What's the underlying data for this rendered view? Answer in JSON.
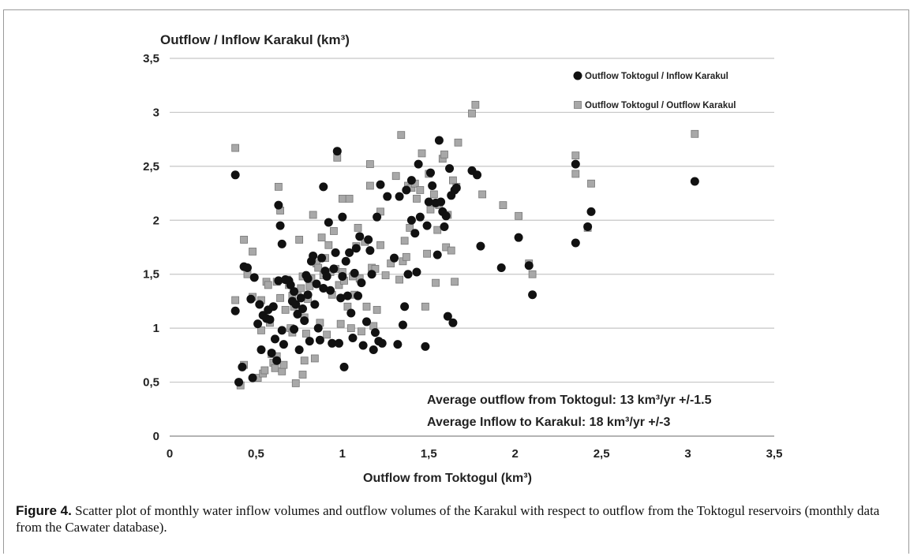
{
  "chart_data": {
    "type": "scatter",
    "title": "Outflow / Inflow Karakul (km³)",
    "xlabel": "Outflow from Toktogul (km³)",
    "xlim": [
      0,
      3.5
    ],
    "ylim": [
      0,
      3.5
    ],
    "xticks": [
      "0",
      "0,5",
      "1",
      "1,5",
      "2",
      "2,5",
      "3",
      "3,5"
    ],
    "yticks": [
      "0",
      "0,5",
      "1",
      "1,5",
      "2",
      "2,5",
      "3",
      "3,5"
    ],
    "grid": "horizontal",
    "legend_position": "top-right",
    "annotations": [
      "Average outflow from Toktogul: 13 km³/yr  +/-1.5",
      "Average Inflow to Karakul: 18 km³/yr +/-3"
    ],
    "series": [
      {
        "name": "Outflow Toktogul / Inflow Karakul",
        "marker": "circle",
        "color": "#111111",
        "points": [
          [
            0.38,
            2.42
          ],
          [
            0.38,
            1.16
          ],
          [
            0.4,
            0.5
          ],
          [
            0.42,
            0.64
          ],
          [
            0.43,
            1.57
          ],
          [
            0.45,
            1.56
          ],
          [
            0.47,
            1.27
          ],
          [
            0.48,
            0.54
          ],
          [
            0.49,
            1.47
          ],
          [
            0.51,
            1.04
          ],
          [
            0.52,
            1.22
          ],
          [
            0.53,
            0.8
          ],
          [
            0.54,
            1.12
          ],
          [
            0.56,
            1.09
          ],
          [
            0.57,
            1.17
          ],
          [
            0.58,
            1.08
          ],
          [
            0.59,
            0.77
          ],
          [
            0.6,
            1.2
          ],
          [
            0.61,
            0.9
          ],
          [
            0.62,
            0.7
          ],
          [
            0.63,
            1.44
          ],
          [
            0.63,
            2.14
          ],
          [
            0.64,
            1.95
          ],
          [
            0.65,
            1.78
          ],
          [
            0.65,
            0.98
          ],
          [
            0.66,
            0.85
          ],
          [
            0.67,
            1.45
          ],
          [
            0.69,
            1.44
          ],
          [
            0.7,
            1.4
          ],
          [
            0.71,
            1.25
          ],
          [
            0.72,
            0.99
          ],
          [
            0.72,
            1.34
          ],
          [
            0.73,
            1.22
          ],
          [
            0.74,
            1.13
          ],
          [
            0.75,
            0.8
          ],
          [
            0.76,
            1.28
          ],
          [
            0.77,
            1.18
          ],
          [
            0.78,
            1.07
          ],
          [
            0.79,
            1.49
          ],
          [
            0.8,
            1.46
          ],
          [
            0.8,
            1.31
          ],
          [
            0.81,
            0.88
          ],
          [
            0.82,
            1.62
          ],
          [
            0.83,
            1.67
          ],
          [
            0.84,
            1.22
          ],
          [
            0.85,
            1.41
          ],
          [
            0.86,
            1.0
          ],
          [
            0.87,
            0.89
          ],
          [
            0.88,
            1.65
          ],
          [
            0.89,
            1.37
          ],
          [
            0.89,
            2.31
          ],
          [
            0.9,
            1.53
          ],
          [
            0.91,
            1.48
          ],
          [
            0.92,
            1.98
          ],
          [
            0.93,
            1.35
          ],
          [
            0.94,
            0.86
          ],
          [
            0.95,
            1.55
          ],
          [
            0.96,
            1.7
          ],
          [
            0.97,
            2.64
          ],
          [
            0.98,
            0.86
          ],
          [
            0.99,
            1.28
          ],
          [
            1.0,
            1.48
          ],
          [
            1.0,
            2.03
          ],
          [
            1.01,
            0.64
          ],
          [
            1.02,
            1.62
          ],
          [
            1.03,
            1.3
          ],
          [
            1.04,
            1.7
          ],
          [
            1.05,
            1.14
          ],
          [
            1.06,
            0.91
          ],
          [
            1.07,
            1.51
          ],
          [
            1.08,
            1.74
          ],
          [
            1.09,
            1.3
          ],
          [
            1.1,
            1.85
          ],
          [
            1.11,
            1.42
          ],
          [
            1.12,
            0.84
          ],
          [
            1.14,
            1.06
          ],
          [
            1.15,
            1.82
          ],
          [
            1.16,
            1.72
          ],
          [
            1.17,
            1.5
          ],
          [
            1.18,
            0.8
          ],
          [
            1.19,
            0.96
          ],
          [
            1.2,
            2.03
          ],
          [
            1.21,
            0.88
          ],
          [
            1.22,
            2.33
          ],
          [
            1.23,
            0.86
          ],
          [
            1.26,
            2.22
          ],
          [
            1.3,
            1.65
          ],
          [
            1.32,
            0.85
          ],
          [
            1.33,
            2.22
          ],
          [
            1.35,
            1.03
          ],
          [
            1.36,
            1.2
          ],
          [
            1.37,
            2.28
          ],
          [
            1.38,
            1.5
          ],
          [
            1.4,
            2.0
          ],
          [
            1.4,
            2.37
          ],
          [
            1.42,
            1.88
          ],
          [
            1.43,
            1.52
          ],
          [
            1.44,
            2.52
          ],
          [
            1.45,
            2.03
          ],
          [
            1.48,
            0.83
          ],
          [
            1.49,
            1.95
          ],
          [
            1.5,
            2.17
          ],
          [
            1.51,
            2.44
          ],
          [
            1.52,
            2.32
          ],
          [
            1.54,
            2.16
          ],
          [
            1.55,
            1.68
          ],
          [
            1.56,
            2.74
          ],
          [
            1.57,
            2.17
          ],
          [
            1.58,
            2.08
          ],
          [
            1.59,
            1.94
          ],
          [
            1.6,
            2.04
          ],
          [
            1.61,
            1.11
          ],
          [
            1.62,
            2.48
          ],
          [
            1.63,
            2.23
          ],
          [
            1.64,
            1.05
          ],
          [
            1.65,
            2.28
          ],
          [
            1.66,
            2.3
          ],
          [
            1.75,
            2.46
          ],
          [
            1.78,
            2.42
          ],
          [
            1.8,
            1.76
          ],
          [
            1.92,
            1.56
          ],
          [
            2.02,
            1.84
          ],
          [
            2.08,
            1.58
          ],
          [
            2.1,
            1.31
          ],
          [
            2.35,
            2.52
          ],
          [
            2.35,
            1.79
          ],
          [
            2.42,
            1.94
          ],
          [
            2.44,
            2.08
          ],
          [
            3.04,
            2.36
          ]
        ]
      },
      {
        "name": "Outflow Toktogul / Outflow Karakul",
        "marker": "square",
        "color": "#a8a8a8",
        "points": [
          [
            0.38,
            2.67
          ],
          [
            0.38,
            1.26
          ],
          [
            0.41,
            0.47
          ],
          [
            0.43,
            0.66
          ],
          [
            0.43,
            1.82
          ],
          [
            0.45,
            1.5
          ],
          [
            0.48,
            1.71
          ],
          [
            0.48,
            1.29
          ],
          [
            0.51,
            0.54
          ],
          [
            0.53,
            1.26
          ],
          [
            0.53,
            0.98
          ],
          [
            0.54,
            0.58
          ],
          [
            0.55,
            0.61
          ],
          [
            0.56,
            1.43
          ],
          [
            0.57,
            1.4
          ],
          [
            0.58,
            1.05
          ],
          [
            0.59,
            0.76
          ],
          [
            0.6,
            0.68
          ],
          [
            0.61,
            0.63
          ],
          [
            0.62,
            0.74
          ],
          [
            0.62,
            1.43
          ],
          [
            0.63,
            2.31
          ],
          [
            0.64,
            2.09
          ],
          [
            0.64,
            1.28
          ],
          [
            0.65,
            0.6
          ],
          [
            0.66,
            0.66
          ],
          [
            0.67,
            1.17
          ],
          [
            0.68,
            1.45
          ],
          [
            0.69,
            1.4
          ],
          [
            0.7,
            1.0
          ],
          [
            0.71,
            1.3
          ],
          [
            0.71,
            0.96
          ],
          [
            0.72,
            1.2
          ],
          [
            0.73,
            0.49
          ],
          [
            0.74,
            1.34
          ],
          [
            0.75,
            1.82
          ],
          [
            0.76,
            1.37
          ],
          [
            0.77,
            1.48
          ],
          [
            0.77,
            0.57
          ],
          [
            0.78,
            0.7
          ],
          [
            0.78,
            1.1
          ],
          [
            0.79,
            0.95
          ],
          [
            0.8,
            1.27
          ],
          [
            0.81,
            1.39
          ],
          [
            0.82,
            1.46
          ],
          [
            0.83,
            2.05
          ],
          [
            0.84,
            0.72
          ],
          [
            0.85,
            1.6
          ],
          [
            0.86,
            1.56
          ],
          [
            0.87,
            1.05
          ],
          [
            0.88,
            1.84
          ],
          [
            0.89,
            1.49
          ],
          [
            0.9,
            1.65
          ],
          [
            0.91,
            0.94
          ],
          [
            0.92,
            1.77
          ],
          [
            0.93,
            1.52
          ],
          [
            0.94,
            1.31
          ],
          [
            0.95,
            1.9
          ],
          [
            0.96,
            1.55
          ],
          [
            0.97,
            2.58
          ],
          [
            0.98,
            1.4
          ],
          [
            0.99,
            1.04
          ],
          [
            1.0,
            2.2
          ],
          [
            1.0,
            1.52
          ],
          [
            1.01,
            1.44
          ],
          [
            1.03,
            1.2
          ],
          [
            1.04,
            2.2
          ],
          [
            1.05,
            1.0
          ],
          [
            1.06,
            1.48
          ],
          [
            1.07,
            1.31
          ],
          [
            1.08,
            1.76
          ],
          [
            1.09,
            1.93
          ],
          [
            1.1,
            1.46
          ],
          [
            1.11,
            0.97
          ],
          [
            1.13,
            1.8
          ],
          [
            1.14,
            1.2
          ],
          [
            1.16,
            2.52
          ],
          [
            1.16,
            2.32
          ],
          [
            1.17,
            1.56
          ],
          [
            1.18,
            1.02
          ],
          [
            1.19,
            1.55
          ],
          [
            1.2,
            1.17
          ],
          [
            1.22,
            2.08
          ],
          [
            1.22,
            1.77
          ],
          [
            1.25,
            1.49
          ],
          [
            1.28,
            1.6
          ],
          [
            1.31,
            2.41
          ],
          [
            1.33,
            1.45
          ],
          [
            1.34,
            2.79
          ],
          [
            1.35,
            1.62
          ],
          [
            1.36,
            1.81
          ],
          [
            1.37,
            1.66
          ],
          [
            1.38,
            2.32
          ],
          [
            1.39,
            1.93
          ],
          [
            1.4,
            2.3
          ],
          [
            1.42,
            2.34
          ],
          [
            1.43,
            2.2
          ],
          [
            1.45,
            2.28
          ],
          [
            1.46,
            2.62
          ],
          [
            1.48,
            1.2
          ],
          [
            1.49,
            1.69
          ],
          [
            1.5,
            2.43
          ],
          [
            1.51,
            2.1
          ],
          [
            1.53,
            2.24
          ],
          [
            1.54,
            1.42
          ],
          [
            1.55,
            1.91
          ],
          [
            1.56,
            2.14
          ],
          [
            1.58,
            2.57
          ],
          [
            1.59,
            2.61
          ],
          [
            1.6,
            1.75
          ],
          [
            1.61,
            2.05
          ],
          [
            1.63,
            1.72
          ],
          [
            1.64,
            2.37
          ],
          [
            1.65,
            1.43
          ],
          [
            1.66,
            2.31
          ],
          [
            1.67,
            2.72
          ],
          [
            1.75,
            2.99
          ],
          [
            1.77,
            3.07
          ],
          [
            1.81,
            2.24
          ],
          [
            1.93,
            2.14
          ],
          [
            2.02,
            2.04
          ],
          [
            2.08,
            1.6
          ],
          [
            2.1,
            1.5
          ],
          [
            2.35,
            2.6
          ],
          [
            2.35,
            2.43
          ],
          [
            2.42,
            1.93
          ],
          [
            2.44,
            2.34
          ],
          [
            3.04,
            2.8
          ]
        ]
      }
    ]
  },
  "caption": {
    "label": "Figure 4.",
    "text": " Scatter plot of monthly water inflow volumes and outflow volumes of the Karakul with respect to outflow from the Toktogul reservoirs (monthly data from the Cawater database)."
  }
}
